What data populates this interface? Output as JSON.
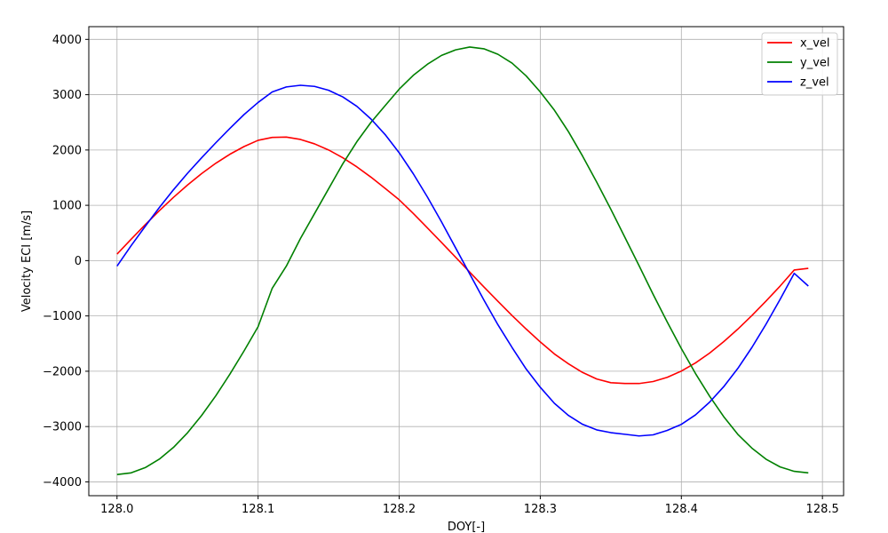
{
  "chart_data": {
    "type": "line",
    "title": "",
    "xlabel": "DOY[-]",
    "ylabel": "Velocity ECI [m/s]",
    "xlim": [
      127.98,
      128.515
    ],
    "ylim": [
      -4250,
      4230
    ],
    "xticks": [
      128.0,
      128.1,
      128.2,
      128.3,
      128.4,
      128.5
    ],
    "xtick_labels": [
      "128.0",
      "128.1",
      "128.2",
      "128.3",
      "128.4",
      "128.5"
    ],
    "yticks": [
      -4000,
      -3000,
      -2000,
      -1000,
      0,
      1000,
      2000,
      3000,
      4000
    ],
    "ytick_labels": [
      "−4000",
      "−3000",
      "−2000",
      "−1000",
      "0",
      "1000",
      "2000",
      "3000",
      "4000"
    ],
    "grid": true,
    "legend_position": "top-right",
    "x": [
      128.0,
      128.01,
      128.02,
      128.03,
      128.04,
      128.05,
      128.06,
      128.07,
      128.08,
      128.09,
      128.1,
      128.11,
      128.12,
      128.13,
      128.14,
      128.15,
      128.16,
      128.17,
      128.18,
      128.19,
      128.2,
      128.21,
      128.22,
      128.23,
      128.24,
      128.25,
      128.26,
      128.27,
      128.28,
      128.29,
      128.3,
      128.31,
      128.32,
      128.33,
      128.34,
      128.35,
      128.36,
      128.37,
      128.38,
      128.39,
      128.4,
      128.41,
      128.42,
      128.43,
      128.44,
      128.45,
      128.46,
      128.47,
      128.48,
      128.49
    ],
    "series": [
      {
        "name": "x_vel",
        "color": "#ff0000",
        "values": [
          117,
          387,
          650,
          903,
          1143,
          1367,
          1574,
          1760,
          1923,
          2062,
          2175,
          2227,
          2233,
          2191,
          2111,
          2000,
          1860,
          1695,
          1509,
          1306,
          1100,
          852,
          592,
          328,
          61,
          -208,
          -474,
          -736,
          -992,
          -1237,
          -1470,
          -1687,
          -1866,
          -2022,
          -2140,
          -2207,
          -2222,
          -2222,
          -2186,
          -2110,
          -1997,
          -1850,
          -1672,
          -1466,
          -1239,
          -992,
          -731,
          -460,
          -170,
          -140
        ]
      },
      {
        "name": "y_vel",
        "color": "#008000",
        "values": [
          -3867,
          -3837,
          -3743,
          -3589,
          -3377,
          -3112,
          -2799,
          -2444,
          -2053,
          -1634,
          -1195,
          -500,
          -100,
          400,
          850,
          1300,
          1750,
          2150,
          2500,
          2800,
          3100,
          3350,
          3550,
          3710,
          3810,
          3862,
          3830,
          3730,
          3570,
          3340,
          3050,
          2720,
          2330,
          1890,
          1420,
          930,
          420,
          -90,
          -610,
          -1110,
          -1590,
          -2040,
          -2450,
          -2820,
          -3140,
          -3390,
          -3590,
          -3730,
          -3810,
          -3838
        ]
      },
      {
        "name": "z_vel",
        "color": "#0000ff",
        "values": [
          -100,
          270,
          620,
          960,
          1280,
          1580,
          1860,
          2130,
          2390,
          2640,
          2860,
          3050,
          3140,
          3170,
          3150,
          3080,
          2960,
          2790,
          2560,
          2280,
          1950,
          1570,
          1150,
          700,
          230,
          -240,
          -710,
          -1160,
          -1570,
          -1960,
          -2290,
          -2580,
          -2800,
          -2960,
          -3060,
          -3110,
          -3140,
          -3170,
          -3150,
          -3070,
          -2960,
          -2790,
          -2560,
          -2280,
          -1950,
          -1570,
          -1150,
          -700,
          -230,
          -460
        ]
      }
    ]
  }
}
